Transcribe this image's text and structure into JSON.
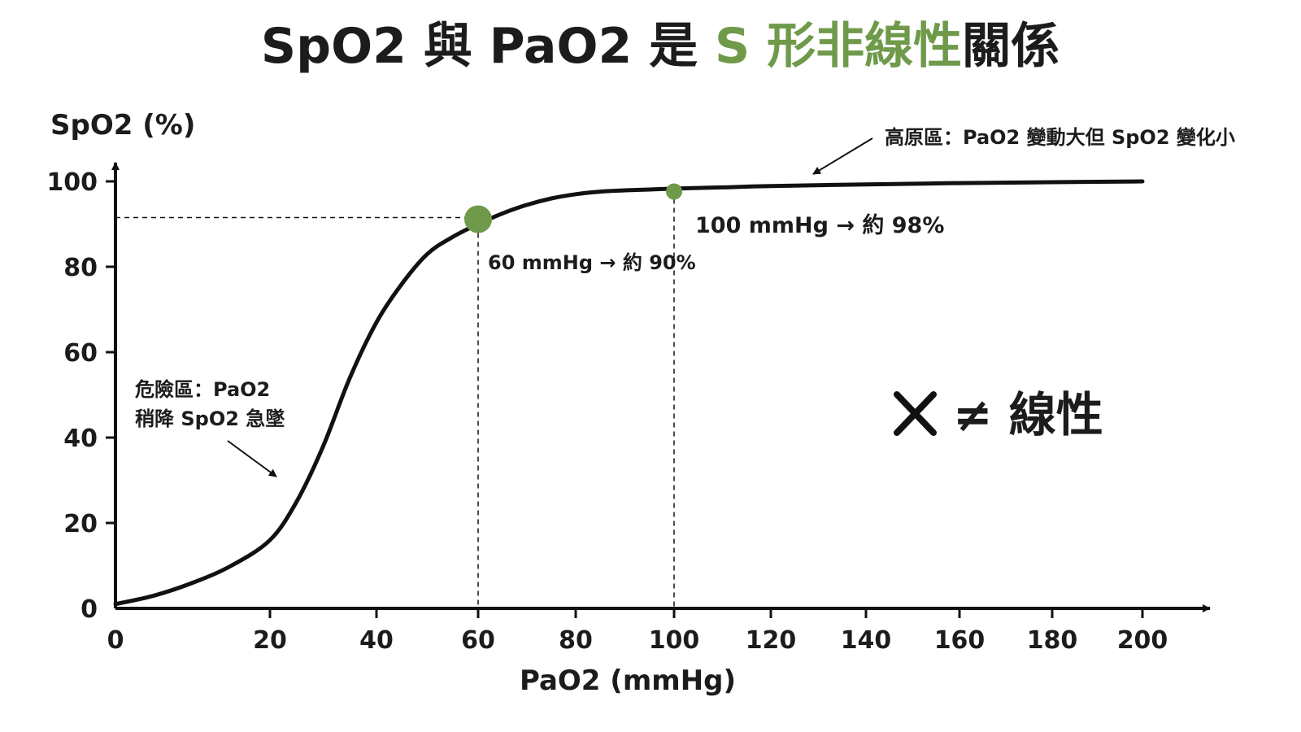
{
  "title": {
    "part1": "SpO2 與 PaO2 是 ",
    "accent": "S 形非線性",
    "part2": "關係"
  },
  "colors": {
    "accent": "#6f9a4a",
    "curve": "#111111",
    "axis": "#111111"
  },
  "chart_data": {
    "type": "line",
    "title": "SpO2 與 PaO2 是 S 形非線性關係",
    "xlabel": "PaO2 (mmHg)",
    "ylabel": "SpO2 (%)",
    "xlim": [
      0,
      200
    ],
    "ylim": [
      0,
      100
    ],
    "x_ticks": [
      0,
      20,
      40,
      60,
      80,
      100,
      120,
      140,
      160,
      180,
      200
    ],
    "y_ticks": [
      0,
      20,
      40,
      60,
      80,
      100
    ],
    "grid": false,
    "series": [
      {
        "x": [
          0,
          5,
          10,
          15,
          20,
          25,
          30,
          35,
          40,
          45,
          50,
          55,
          60,
          65,
          70,
          75,
          80,
          85,
          90,
          95,
          100,
          110,
          120,
          140,
          160,
          180,
          200
        ],
        "values": [
          1,
          3,
          6,
          10,
          16,
          25,
          38,
          54,
          67,
          76,
          83,
          87,
          90,
          92.5,
          94.5,
          96,
          97,
          97.6,
          97.9,
          98.1,
          98.3,
          98.6,
          98.9,
          99.3,
          99.6,
          99.8,
          100
        ]
      }
    ],
    "highlight_points": [
      {
        "x": 60,
        "y": 90,
        "label": "60 mmHg → 約 90%"
      },
      {
        "x": 100,
        "y": 98,
        "label": "100 mmHg → 約 98%"
      }
    ],
    "annotations": {
      "danger_line1": "危險區：PaO2",
      "danger_line2": "稍降 SpO2 急墜",
      "plateau": "高原區：PaO2 變動大但 SpO2 變化小",
      "not_linear": "≠ 線性"
    }
  }
}
